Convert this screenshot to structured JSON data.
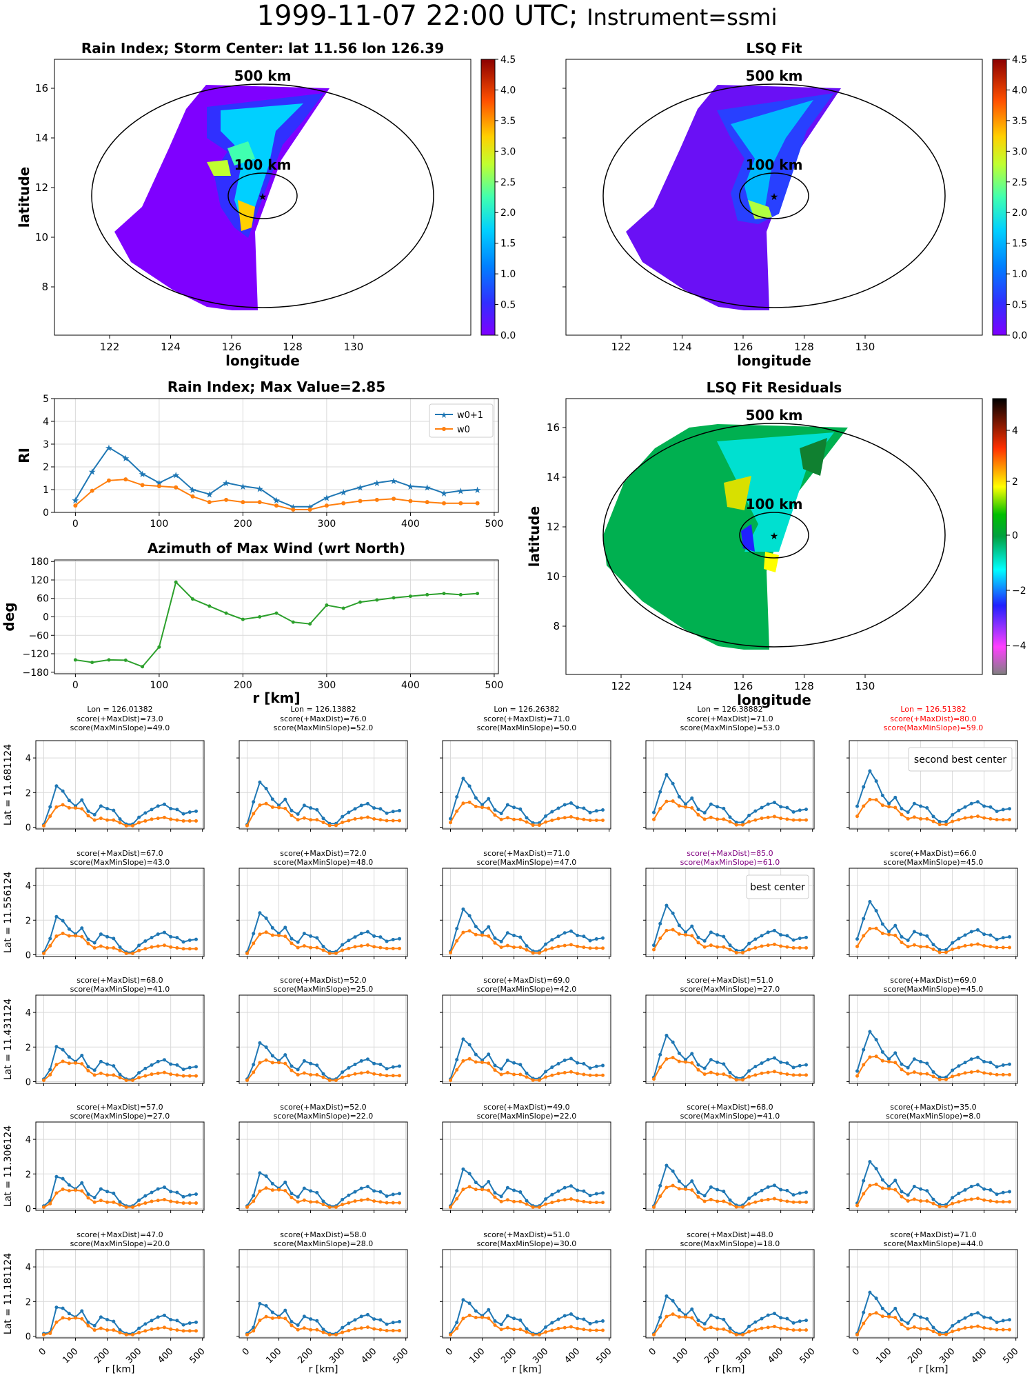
{
  "title_main": "1999-11-07 22:00 UTC; ",
  "title_instrument": "Instrument=ssmi",
  "colors": {
    "w0p1": "#1f77b4",
    "w0": "#ff7f0e",
    "azimuth": "#2ca02c",
    "grid": "#d9d9d9",
    "best": "#800080",
    "second": "#ff0000"
  },
  "map_labels": {
    "outer": "500 km",
    "inner": "100 km"
  },
  "panels": {
    "rain": {
      "title": "Rain Index; Storm Center: lat 11.56 lon 126.39",
      "xlabel": "longitude",
      "ylabel": "latitude",
      "cbar_ticks": [
        "0.0",
        "0.5",
        "1.0",
        "1.5",
        "2.0",
        "2.5",
        "3.0",
        "3.5",
        "4.0",
        "4.5"
      ]
    },
    "lsq": {
      "title": "LSQ Fit",
      "xlabel": "longitude",
      "cbar_ticks": [
        "0.0",
        "0.5",
        "1.0",
        "1.5",
        "2.0",
        "2.5",
        "3.0",
        "3.5",
        "4.0",
        "4.5"
      ]
    },
    "resid": {
      "title": "LSQ Fit Residuals",
      "xlabel": "longitude",
      "ylabel": "latitude",
      "cbar_ticks": [
        "4",
        "2",
        "0",
        "−2",
        "−4"
      ]
    },
    "map_xticks": [
      "122",
      "124",
      "126",
      "128",
      "130"
    ],
    "map_yticks": [
      "8",
      "10",
      "12",
      "14",
      "16"
    ]
  },
  "chart_data": [
    {
      "type": "line",
      "title": "Rain Index; Max Value=2.85",
      "xlabel": "",
      "ylabel": "RI",
      "xlim": [
        -25,
        505
      ],
      "ylim": [
        0,
        5
      ],
      "xticks": [
        "0",
        "100",
        "200",
        "300",
        "400",
        "500"
      ],
      "yticks": [
        "0",
        "1",
        "2",
        "3",
        "4",
        "5"
      ],
      "legend": "top-right",
      "x": [
        0,
        20,
        40,
        60,
        80,
        100,
        120,
        140,
        160,
        180,
        200,
        220,
        240,
        260,
        280,
        300,
        320,
        340,
        360,
        380,
        400,
        420,
        440,
        460,
        480
      ],
      "series": [
        {
          "name": "w0+1",
          "values": [
            0.55,
            1.8,
            2.85,
            2.4,
            1.7,
            1.3,
            1.65,
            1.0,
            0.8,
            1.3,
            1.15,
            1.05,
            0.55,
            0.25,
            0.25,
            0.65,
            0.9,
            1.1,
            1.3,
            1.4,
            1.15,
            1.1,
            0.85,
            0.95,
            1.0
          ]
        },
        {
          "name": "w0",
          "values": [
            0.3,
            0.95,
            1.4,
            1.45,
            1.2,
            1.15,
            1.1,
            0.7,
            0.45,
            0.55,
            0.45,
            0.45,
            0.3,
            0.12,
            0.12,
            0.3,
            0.4,
            0.5,
            0.55,
            0.6,
            0.5,
            0.45,
            0.4,
            0.4,
            0.4
          ]
        }
      ]
    },
    {
      "type": "line",
      "title": "Azimuth of Max Wind (wrt North)",
      "xlabel": "r [km]",
      "ylabel": "deg",
      "xlim": [
        -25,
        505
      ],
      "ylim": [
        -185,
        185
      ],
      "xticks": [
        "0",
        "100",
        "200",
        "300",
        "400",
        "500"
      ],
      "yticks": [
        "−180",
        "−120",
        "−60",
        "0",
        "60",
        "120",
        "180"
      ],
      "x": [
        0,
        20,
        40,
        60,
        80,
        100,
        120,
        140,
        160,
        180,
        200,
        220,
        240,
        260,
        280,
        300,
        320,
        340,
        360,
        380,
        400,
        420,
        440,
        460,
        480
      ],
      "series": [
        {
          "values": [
            -140,
            -148,
            -140,
            -141,
            -162,
            -98,
            113,
            58,
            35,
            12,
            -8,
            0,
            12,
            -17,
            -23,
            38,
            28,
            48,
            55,
            62,
            67,
            72,
            76,
            72,
            76
          ]
        }
      ]
    }
  ],
  "grid": {
    "row_labels": [
      "Lat = 11.681124",
      "Lat = 11.556124",
      "Lat = 11.431124",
      "Lat = 11.306124",
      "Lat = 11.181124"
    ],
    "col_lons": [
      "Lon = 126.01382",
      "Lon = 126.13882",
      "Lon = 126.26382",
      "Lon = 126.38882",
      "Lon = 126.51382"
    ],
    "xlabel": "r [km]",
    "xticks": [
      "0",
      "100",
      "200",
      "300",
      "400",
      "500"
    ],
    "yticks": [
      "0",
      "2",
      "4"
    ],
    "cells": [
      [
        {
          "s1": "score(+MaxDist)=73.0",
          "s2": "score(MaxMinSlope)=49.0"
        },
        {
          "s1": "score(+MaxDist)=76.0",
          "s2": "score(MaxMinSlope)=52.0"
        },
        {
          "s1": "score(+MaxDist)=71.0",
          "s2": "score(MaxMinSlope)=50.0"
        },
        {
          "s1": "score(+MaxDist)=71.0",
          "s2": "score(MaxMinSlope)=53.0"
        },
        {
          "s1": "score(+MaxDist)=80.0",
          "s2": "score(MaxMinSlope)=59.0",
          "mark": "second",
          "note": "second best center"
        }
      ],
      [
        {
          "s1": "score(+MaxDist)=67.0",
          "s2": "score(MaxMinSlope)=43.0"
        },
        {
          "s1": "score(+MaxDist)=72.0",
          "s2": "score(MaxMinSlope)=48.0"
        },
        {
          "s1": "score(+MaxDist)=71.0",
          "s2": "score(MaxMinSlope)=47.0"
        },
        {
          "s1": "score(+MaxDist)=85.0",
          "s2": "score(MaxMinSlope)=61.0",
          "mark": "best",
          "note": "best center"
        },
        {
          "s1": "score(+MaxDist)=66.0",
          "s2": "score(MaxMinSlope)=45.0"
        }
      ],
      [
        {
          "s1": "score(+MaxDist)=68.0",
          "s2": "score(MaxMinSlope)=41.0"
        },
        {
          "s1": "score(+MaxDist)=52.0",
          "s2": "score(MaxMinSlope)=25.0"
        },
        {
          "s1": "score(+MaxDist)=69.0",
          "s2": "score(MaxMinSlope)=42.0"
        },
        {
          "s1": "score(+MaxDist)=51.0",
          "s2": "score(MaxMinSlope)=27.0"
        },
        {
          "s1": "score(+MaxDist)=69.0",
          "s2": "score(MaxMinSlope)=45.0"
        }
      ],
      [
        {
          "s1": "score(+MaxDist)=57.0",
          "s2": "score(MaxMinSlope)=27.0"
        },
        {
          "s1": "score(+MaxDist)=52.0",
          "s2": "score(MaxMinSlope)=22.0"
        },
        {
          "s1": "score(+MaxDist)=49.0",
          "s2": "score(MaxMinSlope)=22.0"
        },
        {
          "s1": "score(+MaxDist)=68.0",
          "s2": "score(MaxMinSlope)=41.0"
        },
        {
          "s1": "score(+MaxDist)=35.0",
          "s2": "score(MaxMinSlope)=8.0"
        }
      ],
      [
        {
          "s1": "score(+MaxDist)=47.0",
          "s2": "score(MaxMinSlope)=20.0"
        },
        {
          "s1": "score(+MaxDist)=58.0",
          "s2": "score(MaxMinSlope)=28.0"
        },
        {
          "s1": "score(+MaxDist)=51.0",
          "s2": "score(MaxMinSlope)=30.0"
        },
        {
          "s1": "score(+MaxDist)=48.0",
          "s2": "score(MaxMinSlope)=18.0"
        },
        {
          "s1": "score(+MaxDist)=71.0",
          "s2": "score(MaxMinSlope)=44.0"
        }
      ]
    ]
  }
}
